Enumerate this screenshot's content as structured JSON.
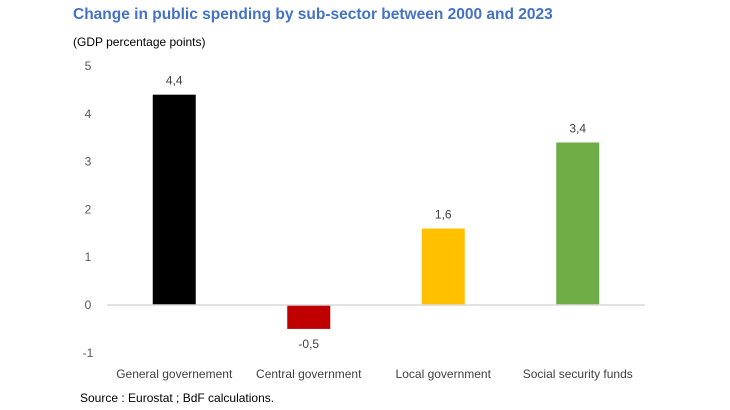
{
  "chart_data": {
    "type": "bar",
    "title": "Change in public spending by sub-sector between 2000 and 2023",
    "subtitle": "(GDP percentage points)",
    "source": "Source : Eurostat ; BdF calculations.",
    "categories": [
      "General governement",
      "Central government",
      "Local government",
      "Social security funds"
    ],
    "values": [
      4.4,
      -0.5,
      1.6,
      3.4
    ],
    "data_labels": [
      "4,4",
      "-0,5",
      "1,6",
      "3,4"
    ],
    "colors": [
      "#000000",
      "#C00000",
      "#FFC000",
      "#70AD47"
    ],
    "ylim": [
      -1,
      5
    ],
    "yticks": [
      -1,
      0,
      1,
      2,
      3,
      4,
      5
    ],
    "xlabel": "",
    "ylabel": "",
    "grid": false,
    "legend": "none"
  }
}
